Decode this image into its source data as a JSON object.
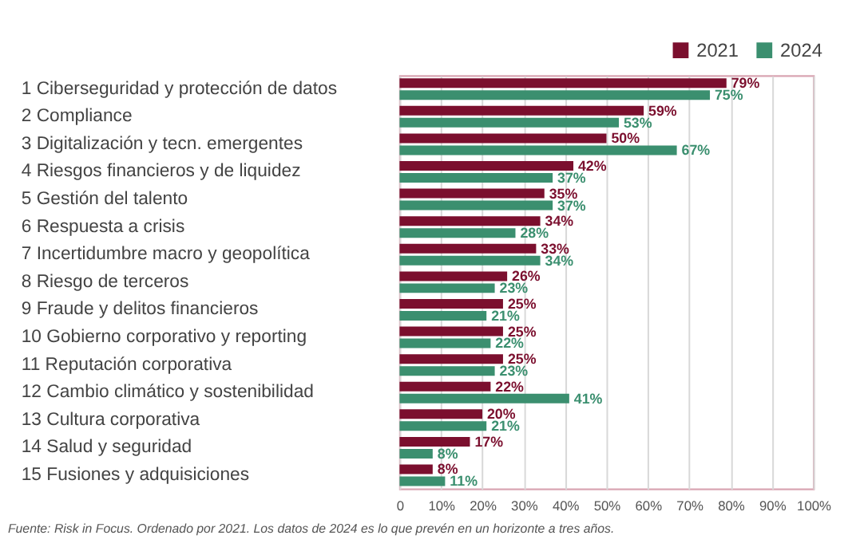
{
  "chart_data": {
    "type": "bar",
    "orientation": "horizontal",
    "categories": [
      "1  Ciberseguridad y protección de datos",
      "2  Compliance",
      "3  Digitalización y tecn. emergentes",
      "4  Riesgos financieros y de liquidez",
      "5  Gestión del talento",
      "6  Respuesta a crisis",
      "7  Incertidumbre macro y geopolítica",
      "8  Riesgo de terceros",
      "9  Fraude y delitos financieros",
      "10  Gobierno corporativo y reporting",
      "11  Reputación corporativa",
      "12  Cambio climático y sostenibilidad",
      "13  Cultura corporativa",
      "14  Salud y seguridad",
      "15  Fusiones y adquisiciones"
    ],
    "series": [
      {
        "name": "2021",
        "color": "#7b0f2e",
        "values": [
          79,
          59,
          50,
          42,
          35,
          34,
          33,
          26,
          25,
          25,
          25,
          22,
          20,
          17,
          8
        ],
        "value_labels": [
          "79%",
          "59%",
          "50%",
          "42%",
          "35%",
          "34%",
          "33%",
          "26%",
          "25%",
          "25%",
          "25%",
          "22%",
          "20%",
          "17%",
          "8%"
        ]
      },
      {
        "name": "2024",
        "color": "#3b8f6f",
        "values": [
          75,
          53,
          67,
          37,
          37,
          28,
          34,
          23,
          21,
          22,
          23,
          41,
          21,
          8,
          11
        ],
        "value_labels": [
          "75%",
          "53%",
          "67%",
          "37%",
          "37%",
          "28%",
          "34%",
          "23%",
          "21%",
          "22%",
          "23%",
          "41%",
          "21%",
          "8%",
          "11%"
        ]
      }
    ],
    "xlim": [
      0,
      100
    ],
    "xticks": [
      0,
      {
        "value": 10,
        "label": "10%"
      },
      {
        "value": 20,
        "label": "20%"
      },
      {
        "value": 30,
        "label": "30%"
      },
      {
        "value": 40,
        "label": "40%"
      },
      {
        "value": 50,
        "label": "50%"
      },
      {
        "value": 60,
        "label": "60%"
      },
      {
        "value": 70,
        "label": "70%"
      },
      {
        "value": 80,
        "label": "80%"
      },
      {
        "value": 90,
        "label": "90%"
      },
      {
        "value": 100,
        "label": "100%"
      }
    ],
    "grid": "x",
    "legend": "top right",
    "annotations": [
      "Fuente: Risk in Focus. Ordenado por 2021. Los datos de 2024 es lo que prevén en un horizonte a tres años."
    ]
  }
}
